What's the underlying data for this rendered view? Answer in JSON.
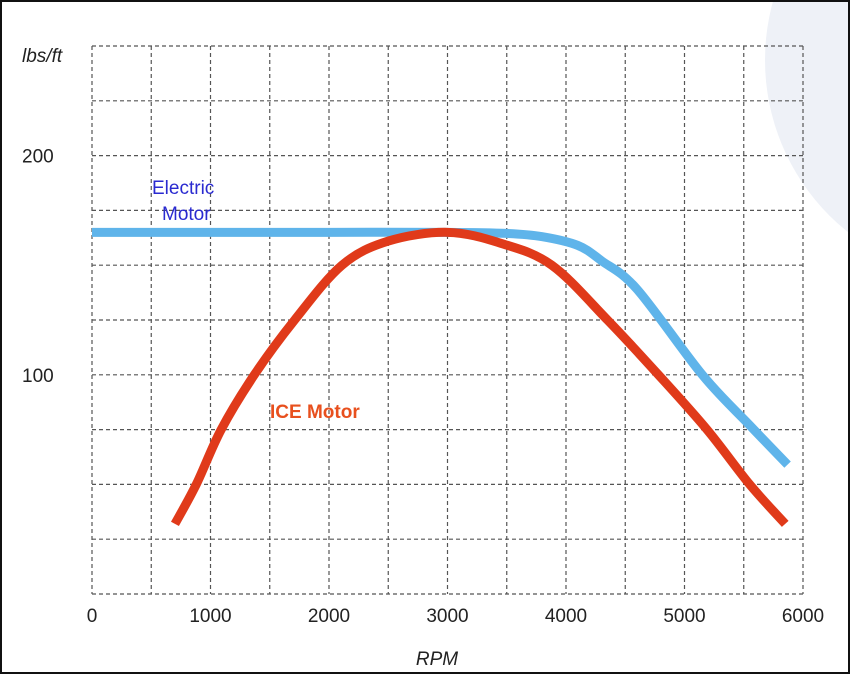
{
  "chart_data": {
    "type": "line",
    "title": "",
    "xlabel": "RPM",
    "ylabel": "lbs/ft",
    "xlim": [
      0,
      6000
    ],
    "ylim": [
      0,
      250
    ],
    "x_ticks": [
      0,
      1000,
      2000,
      3000,
      4000,
      5000,
      6000
    ],
    "y_ticks": [
      100,
      200
    ],
    "grid": true,
    "grid_x_step": 500,
    "grid_y_step": 25,
    "series": [
      {
        "name": "Electric Motor",
        "label_lines": [
          "Electric",
          "Motor"
        ],
        "color": "#5fb4ea",
        "label_color": "#2a2ad0",
        "x": [
          0,
          1000,
          2000,
          3000,
          3500,
          3800,
          4100,
          4300,
          4600,
          5150,
          5550,
          5870
        ],
        "y": [
          165,
          165,
          165,
          165,
          164.5,
          163,
          159,
          152,
          139,
          100,
          77,
          59
        ]
      },
      {
        "name": "ICE Motor",
        "label_lines": [
          "ICE Motor"
        ],
        "color": "#e03a1a",
        "label_color": "#e8501e",
        "x": [
          700,
          880,
          1090,
          1370,
          1710,
          2110,
          2500,
          3000,
          3450,
          3880,
          4350,
          4780,
          5190,
          5550,
          5850
        ],
        "y": [
          32,
          50,
          75,
          100,
          125,
          150,
          161,
          165,
          160,
          150,
          125,
          100,
          75,
          50,
          32
        ]
      }
    ]
  }
}
